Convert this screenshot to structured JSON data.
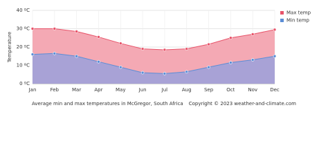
{
  "chart_data": {
    "type": "area",
    "y_label": "Temperature",
    "caption": "Average min and max temperatures in McGregor, South Africa",
    "copyright": "Copyright © 2023  weather-and-climate.com",
    "categories": [
      "Jan",
      "Feb",
      "Mar",
      "Apr",
      "May",
      "Jun",
      "Jul",
      "Aug",
      "Sep",
      "Oct",
      "Nov",
      "Dec"
    ],
    "series": [
      {
        "name": "Max temp",
        "color": "#e8546a",
        "fill": "#f4a9b4",
        "values": [
          30,
          30,
          28.5,
          25.5,
          22,
          19,
          18.5,
          19,
          21.5,
          25,
          27,
          29.5
        ]
      },
      {
        "name": "Min temp",
        "color": "#5b8dd6",
        "fill": "#a8a2d6",
        "values": [
          16,
          16.5,
          15,
          12,
          9,
          6,
          5.5,
          6.5,
          9,
          11.5,
          13,
          15
        ]
      }
    ],
    "ylim": [
      0,
      40
    ],
    "yticks": [
      {
        "value": 0,
        "label": "0 ºC"
      },
      {
        "value": 10,
        "label": "10 ºC"
      },
      {
        "value": 20,
        "label": "20 ºC"
      },
      {
        "value": 30,
        "label": "30 ºC"
      },
      {
        "value": 40,
        "label": "40 ºC"
      }
    ],
    "grid": true
  }
}
